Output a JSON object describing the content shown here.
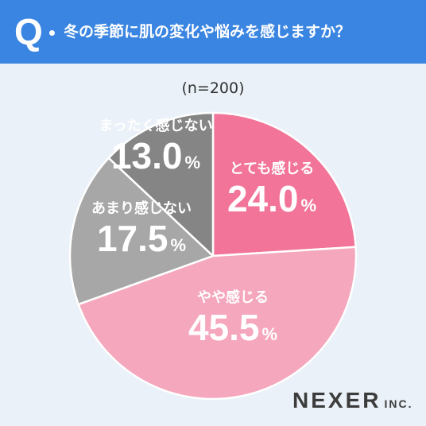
{
  "header": {
    "q_label": "Q",
    "question": "冬の季節に肌の変化や悩みを感じますか？"
  },
  "sample_size": "(n=200)",
  "brand": {
    "name": "NEXER",
    "suffix": "INC."
  },
  "chart_data": {
    "type": "pie",
    "categories": [
      "とても感じる",
      "やや感じる",
      "あまり感じない",
      "まったく感じない"
    ],
    "values": [
      24.0,
      45.5,
      17.5,
      13.0
    ],
    "value_labels": [
      "24.0",
      "45.5",
      "17.5",
      "13.0"
    ],
    "unit": "%",
    "colors": [
      "#f27498",
      "#f5a7bd",
      "#a7a7a7",
      "#858585"
    ],
    "label_colors": [
      "#ffffff",
      "#ffffff",
      "#ffffff",
      "#ffffff"
    ],
    "start_angle": "12 o'clock",
    "direction": "clockwise"
  }
}
